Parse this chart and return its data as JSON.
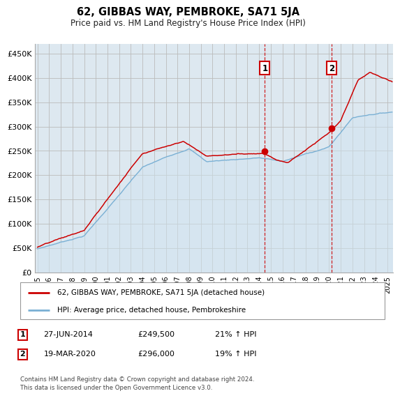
{
  "title": "62, GIBBAS WAY, PEMBROKE, SA71 5JA",
  "subtitle": "Price paid vs. HM Land Registry's House Price Index (HPI)",
  "ylabel_ticks": [
    "£0",
    "£50K",
    "£100K",
    "£150K",
    "£200K",
    "£250K",
    "£300K",
    "£350K",
    "£400K",
    "£450K"
  ],
  "ytick_values": [
    0,
    50000,
    100000,
    150000,
    200000,
    250000,
    300000,
    350000,
    400000,
    450000
  ],
  "ylim": [
    0,
    470000
  ],
  "xlim_start": 1994.8,
  "xlim_end": 2025.5,
  "legend_line1": "62, GIBBAS WAY, PEMBROKE, SA71 5JA (detached house)",
  "legend_line2": "HPI: Average price, detached house, Pembrokeshire",
  "marker1_date": 2014.49,
  "marker1_price": 249500,
  "marker2_date": 2020.21,
  "marker2_price": 296000,
  "marker1_info_date": "27-JUN-2014",
  "marker1_info_price": "£249,500",
  "marker1_info_pct": "21% ↑ HPI",
  "marker2_info_date": "19-MAR-2020",
  "marker2_info_price": "£296,000",
  "marker2_info_pct": "19% ↑ HPI",
  "footnote": "Contains HM Land Registry data © Crown copyright and database right 2024.\nThis data is licensed under the Open Government Licence v3.0.",
  "line_color_red": "#cc0000",
  "line_color_blue": "#7ab0d4",
  "fill_color_blue": "#d0e4f0",
  "background_color": "#dde8f0",
  "plot_bg": "#ffffff",
  "grid_color": "#bbbbbb"
}
